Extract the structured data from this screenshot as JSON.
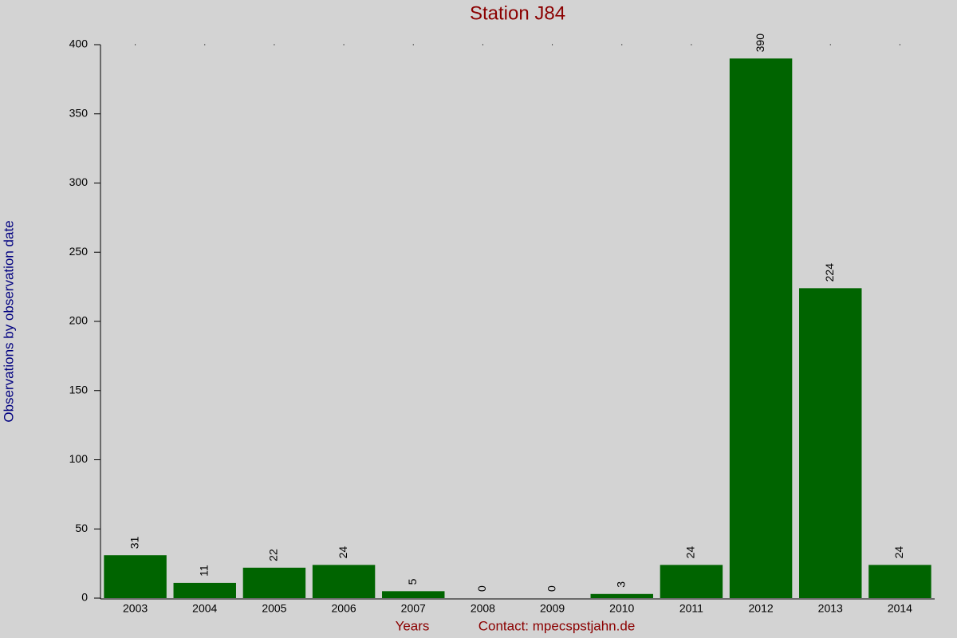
{
  "chart_data": {
    "type": "bar",
    "title": "Station J84",
    "y_label": "Observations by observation date",
    "x_label": "Years",
    "contact": "Contact: mpecspstjahn.de",
    "categories": [
      "2003",
      "2004",
      "2005",
      "2006",
      "2007",
      "2008",
      "2009",
      "2010",
      "2011",
      "2012",
      "2013",
      "2014"
    ],
    "values": [
      31,
      11,
      22,
      24,
      5,
      0,
      0,
      3,
      24,
      390,
      224,
      24
    ],
    "color": "#006400",
    "ylim": [
      0,
      400
    ],
    "yticks": [
      0,
      50,
      100,
      150,
      200,
      250,
      300,
      350,
      400
    ],
    "grid": false
  }
}
